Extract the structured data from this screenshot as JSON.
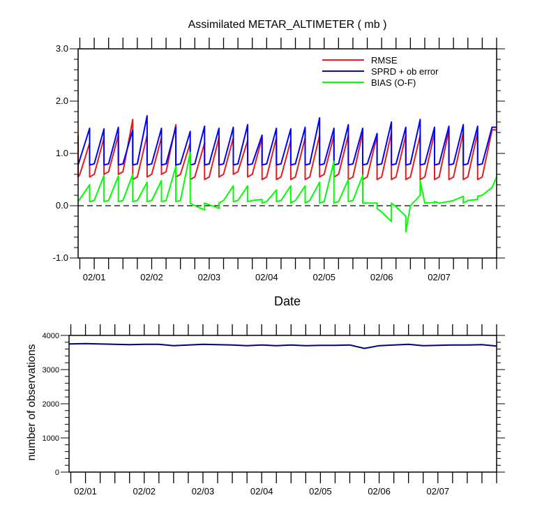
{
  "chart_data": [
    {
      "type": "line",
      "title": "Assimilated METAR_ALTIMETER ( mb )",
      "xlabel": "Date",
      "ylabel": "",
      "x_ticks": [
        "02/01",
        "02/02",
        "02/03",
        "02/04",
        "02/05",
        "02/06",
        "02/07"
      ],
      "xlim": [
        -0.28,
        7.0
      ],
      "ylim": [
        -1.0,
        3.0
      ],
      "y_ticks": [
        "-1.0",
        "0.0",
        "1.0",
        "2.0",
        "3.0"
      ],
      "y_tick_values": [
        -1,
        0,
        1,
        2,
        3
      ],
      "reference_line": 0,
      "legend_position": "top-right",
      "series": [
        {
          "name": "RMSE",
          "color": "#e41a1c",
          "x": [
            -0.28,
            -0.28,
            -0.25,
            -0.08,
            -0.08,
            0.0,
            0.17,
            0.17,
            0.25,
            0.42,
            0.42,
            0.5,
            0.67,
            0.67,
            0.75,
            0.92,
            0.92,
            1.0,
            1.17,
            1.17,
            1.25,
            1.42,
            1.42,
            1.5,
            1.67,
            1.67,
            1.75,
            1.92,
            1.92,
            2.0,
            2.17,
            2.17,
            2.25,
            2.42,
            2.42,
            2.5,
            2.67,
            2.67,
            2.75,
            2.92,
            2.92,
            3.0,
            3.17,
            3.17,
            3.25,
            3.42,
            3.42,
            3.5,
            3.67,
            3.67,
            3.75,
            3.92,
            3.92,
            4.0,
            4.17,
            4.17,
            4.25,
            4.42,
            4.42,
            4.5,
            4.67,
            4.67,
            4.75,
            4.92,
            4.92,
            5.0,
            5.17,
            5.17,
            5.25,
            5.42,
            5.42,
            5.5,
            5.67,
            5.67,
            5.75,
            5.92,
            5.92,
            6.0,
            6.17,
            6.17,
            6.25,
            6.42,
            6.42,
            6.5,
            6.67,
            6.67,
            6.75,
            6.92,
            7.0
          ],
          "values": [
            1.35,
            0.55,
            0.6,
            1.2,
            0.55,
            0.6,
            1.3,
            0.6,
            0.65,
            1.35,
            0.6,
            0.65,
            1.65,
            0.5,
            0.55,
            1.35,
            0.55,
            0.6,
            1.3,
            0.6,
            0.65,
            1.55,
            0.55,
            0.6,
            1.2,
            0.5,
            0.55,
            1.2,
            0.5,
            0.55,
            1.3,
            0.55,
            0.6,
            1.3,
            0.6,
            0.65,
            1.25,
            0.55,
            0.6,
            1.3,
            0.5,
            0.55,
            1.3,
            0.5,
            0.55,
            1.25,
            0.5,
            0.55,
            1.3,
            0.5,
            0.55,
            1.35,
            0.55,
            0.6,
            1.35,
            0.55,
            0.6,
            1.35,
            0.5,
            0.55,
            1.4,
            0.5,
            0.55,
            1.35,
            0.5,
            0.55,
            1.4,
            0.5,
            0.55,
            1.35,
            0.5,
            0.55,
            1.35,
            0.5,
            0.55,
            1.4,
            0.5,
            0.55,
            1.45,
            0.5,
            0.55,
            1.4,
            0.5,
            0.55,
            1.4,
            0.5,
            0.55,
            1.45,
            1.45
          ]
        },
        {
          "name": "SPRD + ob error",
          "color": "#0000ff",
          "x": [
            -0.28,
            -0.08,
            -0.08,
            0.0,
            0.17,
            0.17,
            0.25,
            0.42,
            0.42,
            0.5,
            0.67,
            0.67,
            0.75,
            0.92,
            0.92,
            1.0,
            1.17,
            1.17,
            1.25,
            1.42,
            1.42,
            1.5,
            1.67,
            1.67,
            1.75,
            1.92,
            1.92,
            2.0,
            2.17,
            2.17,
            2.25,
            2.42,
            2.42,
            2.5,
            2.67,
            2.67,
            2.75,
            2.92,
            2.92,
            3.0,
            3.17,
            3.17,
            3.25,
            3.42,
            3.42,
            3.5,
            3.67,
            3.67,
            3.75,
            3.92,
            3.92,
            4.0,
            4.17,
            4.17,
            4.25,
            4.42,
            4.42,
            4.5,
            4.67,
            4.67,
            4.75,
            4.92,
            4.92,
            5.0,
            5.17,
            5.17,
            5.25,
            5.42,
            5.42,
            5.5,
            5.67,
            5.67,
            5.75,
            5.92,
            5.92,
            6.0,
            6.17,
            6.17,
            6.25,
            6.42,
            6.42,
            6.5,
            6.67,
            6.67,
            6.75,
            6.92,
            7.0
          ],
          "values": [
            0.78,
            1.48,
            0.78,
            0.8,
            1.47,
            0.78,
            0.8,
            1.5,
            0.78,
            0.8,
            1.45,
            0.78,
            0.8,
            1.72,
            0.78,
            0.8,
            1.48,
            0.78,
            0.8,
            1.5,
            0.78,
            0.8,
            1.42,
            0.78,
            0.8,
            1.52,
            0.78,
            0.8,
            1.48,
            0.78,
            0.8,
            1.5,
            0.78,
            0.8,
            1.55,
            0.78,
            0.8,
            1.35,
            0.78,
            0.8,
            1.48,
            0.78,
            0.8,
            1.47,
            0.78,
            0.8,
            1.5,
            0.78,
            0.8,
            1.68,
            0.78,
            0.8,
            1.48,
            0.78,
            0.8,
            1.55,
            0.78,
            0.8,
            1.48,
            0.78,
            0.8,
            1.38,
            0.78,
            0.8,
            1.6,
            0.78,
            0.8,
            1.5,
            0.78,
            0.8,
            1.65,
            0.78,
            0.8,
            1.5,
            0.78,
            0.8,
            1.52,
            0.78,
            0.8,
            1.55,
            0.78,
            0.8,
            1.52,
            0.78,
            0.8,
            1.5,
            1.5
          ]
        },
        {
          "name": "BIAS (O-F)",
          "color": "#00ff00",
          "x": [
            -0.28,
            -0.08,
            -0.08,
            0.0,
            0.17,
            0.17,
            0.25,
            0.42,
            0.42,
            0.5,
            0.67,
            0.67,
            0.75,
            0.92,
            0.92,
            1.0,
            1.17,
            1.17,
            1.25,
            1.42,
            1.42,
            1.5,
            1.67,
            1.67,
            1.75,
            1.92,
            1.92,
            2.0,
            2.17,
            2.17,
            2.25,
            2.42,
            2.42,
            2.5,
            2.67,
            2.67,
            2.75,
            2.92,
            2.92,
            3.0,
            3.17,
            3.17,
            3.25,
            3.42,
            3.42,
            3.5,
            3.67,
            3.67,
            3.75,
            3.92,
            3.92,
            4.0,
            4.17,
            4.17,
            4.25,
            4.42,
            4.42,
            4.5,
            4.67,
            4.67,
            4.75,
            4.92,
            4.92,
            5.0,
            5.17,
            5.17,
            5.25,
            5.42,
            5.42,
            5.5,
            5.67,
            5.67,
            5.75,
            5.92,
            5.92,
            6.0,
            6.17,
            6.17,
            6.25,
            6.42,
            6.42,
            6.5,
            6.67,
            6.67,
            6.75,
            6.92,
            7.0
          ],
          "values": [
            0.08,
            0.4,
            0.08,
            0.1,
            0.58,
            0.08,
            0.1,
            0.57,
            0.08,
            0.1,
            0.6,
            0.08,
            0.1,
            0.45,
            0.08,
            0.1,
            0.48,
            0.08,
            0.1,
            0.75,
            0.08,
            0.1,
            1.02,
            0.05,
            0.0,
            -0.08,
            0.05,
            0.02,
            -0.05,
            0.05,
            0.1,
            0.38,
            0.08,
            0.1,
            0.38,
            0.08,
            0.1,
            0.12,
            0.05,
            0.08,
            0.3,
            0.08,
            0.1,
            0.38,
            0.05,
            0.1,
            0.38,
            0.05,
            0.1,
            0.45,
            0.05,
            0.08,
            0.85,
            0.05,
            0.08,
            0.5,
            0.08,
            0.1,
            0.58,
            0.05,
            0.05,
            0.05,
            -0.05,
            -0.12,
            -0.3,
            0.05,
            -0.02,
            -0.2,
            -0.5,
            0.0,
            0.2,
            0.48,
            0.05,
            0.06,
            0.08,
            0.05,
            0.08,
            0.08,
            0.1,
            0.18,
            0.05,
            0.1,
            0.12,
            0.18,
            0.2,
            0.35,
            0.55
          ]
        }
      ]
    },
    {
      "type": "line",
      "title": "",
      "xlabel": "",
      "ylabel": "number of observations",
      "x_ticks": [
        "02/01",
        "02/02",
        "02/03",
        "02/04",
        "02/05",
        "02/06",
        "02/07"
      ],
      "xlim": [
        -0.28,
        7.0
      ],
      "ylim": [
        0,
        4000
      ],
      "y_ticks": [
        "0",
        "1000",
        "2000",
        "3000",
        "4000"
      ],
      "y_tick_values": [
        0,
        1000,
        2000,
        3000,
        4000
      ],
      "series": [
        {
          "color": "#000080",
          "x": [
            -0.28,
            0.0,
            0.25,
            0.5,
            0.75,
            1.0,
            1.25,
            1.5,
            1.75,
            2.0,
            2.25,
            2.5,
            2.75,
            3.0,
            3.25,
            3.5,
            3.75,
            4.0,
            4.25,
            4.5,
            4.75,
            5.0,
            5.25,
            5.5,
            5.75,
            6.0,
            6.25,
            6.5,
            6.75,
            7.0
          ],
          "values": [
            3750,
            3760,
            3750,
            3740,
            3730,
            3740,
            3740,
            3700,
            3720,
            3740,
            3730,
            3720,
            3700,
            3720,
            3700,
            3720,
            3700,
            3710,
            3710,
            3720,
            3620,
            3700,
            3720,
            3740,
            3700,
            3710,
            3720,
            3720,
            3730,
            3690
          ]
        }
      ]
    }
  ]
}
